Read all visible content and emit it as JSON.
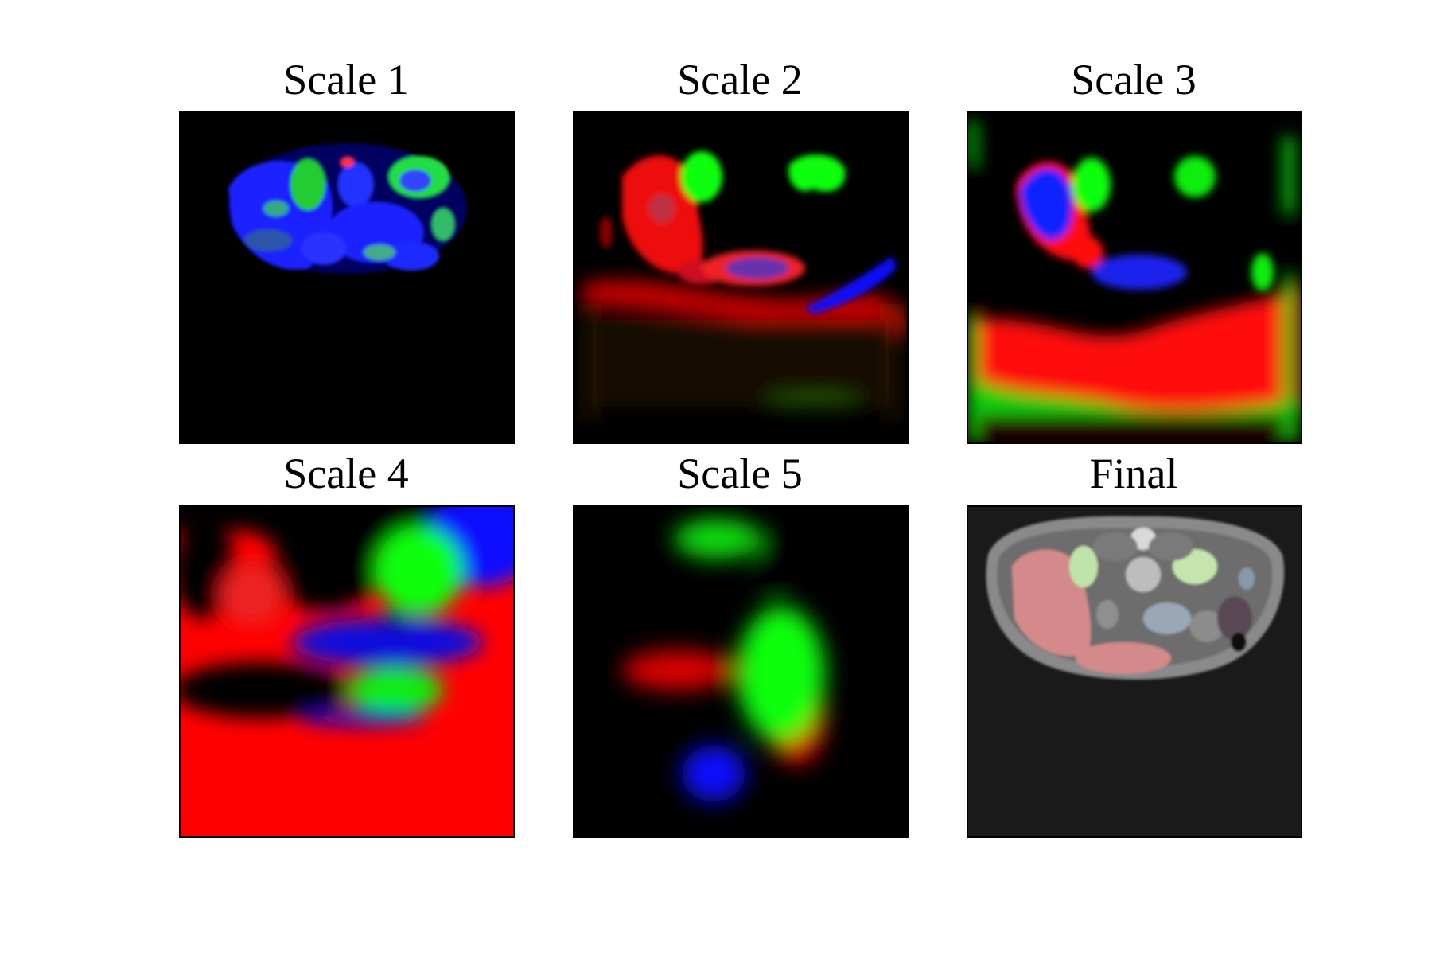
{
  "figure": {
    "panels": [
      {
        "id": "scale1",
        "title": "Scale 1"
      },
      {
        "id": "scale2",
        "title": "Scale 2"
      },
      {
        "id": "scale3",
        "title": "Scale 3"
      },
      {
        "id": "scale4",
        "title": "Scale 4"
      },
      {
        "id": "scale5",
        "title": "Scale 5"
      },
      {
        "id": "final",
        "title": "Final"
      }
    ]
  },
  "colors": {
    "red_channel": "#ff0000",
    "green_channel": "#00ff00",
    "blue_channel": "#0000ff",
    "background": "#000000",
    "final_background": "#1a1a1a"
  }
}
